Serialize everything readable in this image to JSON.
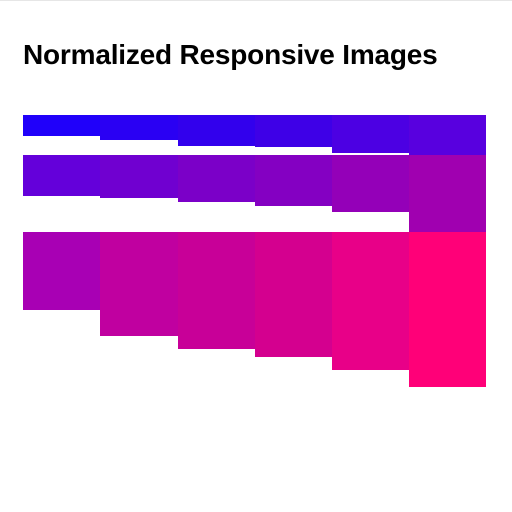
{
  "page": {
    "title": "Normalized Responsive Images"
  },
  "colors": {
    "gradient_start": "#2000fa",
    "gradient_end": "#ff0078",
    "background": "#ffffff"
  },
  "gallery": {
    "rows": 3,
    "columns": 6,
    "tiles": [
      {
        "row": 0,
        "col": 0,
        "color": "#2000fa"
      },
      {
        "row": 0,
        "col": 1,
        "color": "#2a00f3"
      },
      {
        "row": 0,
        "col": 2,
        "color": "#3200ed"
      },
      {
        "row": 0,
        "col": 3,
        "color": "#3e00e7"
      },
      {
        "row": 0,
        "col": 4,
        "color": "#4c00e3"
      },
      {
        "row": 0,
        "col": 5,
        "color": "#5800df"
      },
      {
        "row": 1,
        "col": 0,
        "color": "#6400da"
      },
      {
        "row": 1,
        "col": 1,
        "color": "#7000d0"
      },
      {
        "row": 1,
        "col": 2,
        "color": "#7b00c8"
      },
      {
        "row": 1,
        "col": 3,
        "color": "#8400c2"
      },
      {
        "row": 1,
        "col": 4,
        "color": "#9400b8"
      },
      {
        "row": 1,
        "col": 5,
        "color": "#a000b0"
      },
      {
        "row": 2,
        "col": 0,
        "color": "#a800b4"
      },
      {
        "row": 2,
        "col": 1,
        "color": "#c000a0"
      },
      {
        "row": 2,
        "col": 2,
        "color": "#c80098"
      },
      {
        "row": 2,
        "col": 3,
        "color": "#d4008f"
      },
      {
        "row": 2,
        "col": 4,
        "color": "#e80088"
      },
      {
        "row": 2,
        "col": 5,
        "color": "#ff0078"
      }
    ]
  }
}
